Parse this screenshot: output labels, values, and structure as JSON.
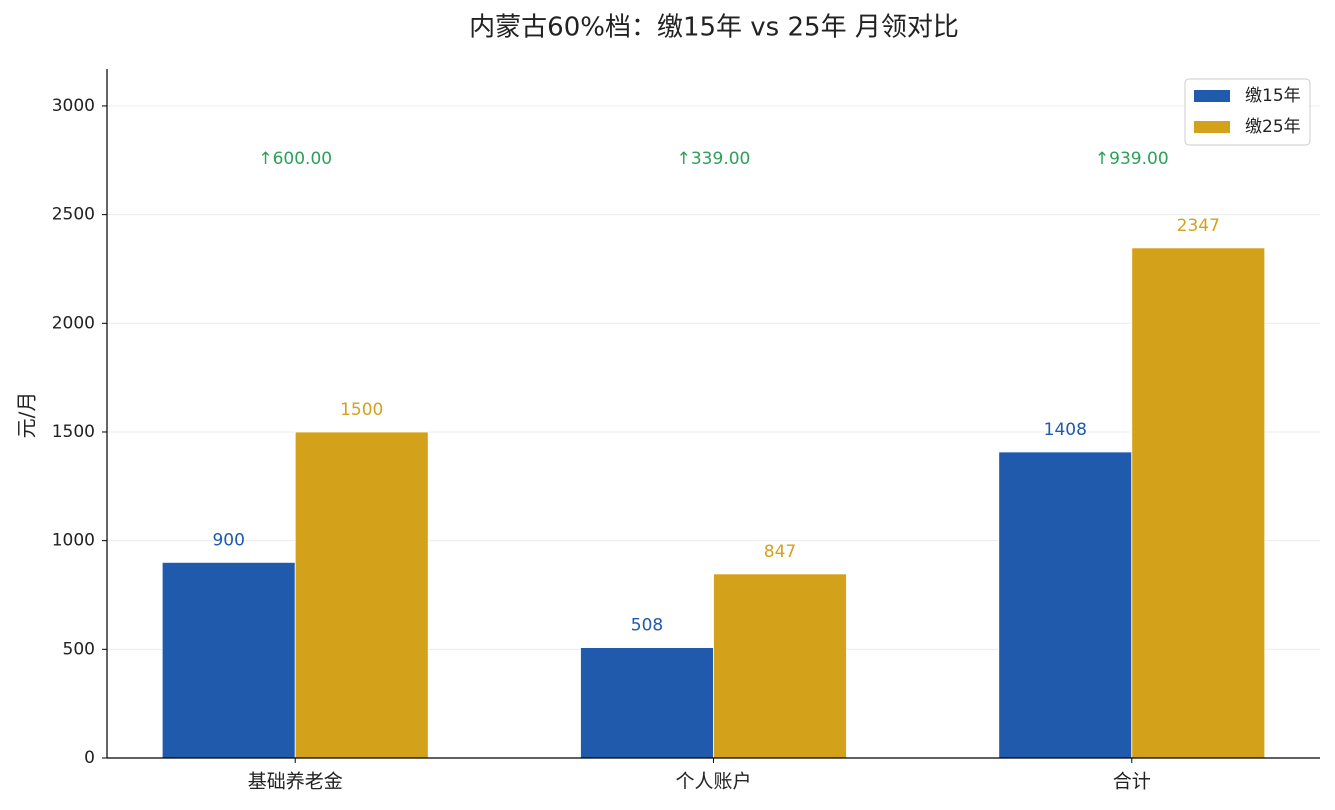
{
  "chart_data": {
    "type": "bar",
    "title": "内蒙古60%档：缴15年 vs 25年 月领对比",
    "y_label": "元/月",
    "categories": [
      "基础养老金",
      "个人账户",
      "合计"
    ],
    "series": [
      {
        "name": "缴15年",
        "color": "#1f5aad",
        "values": [
          900,
          508,
          1408
        ]
      },
      {
        "name": "缴25年",
        "color": "#d4a21a",
        "values": [
          1500,
          847,
          2347
        ]
      }
    ],
    "annotations": [
      "↑600.00",
      "↑339.00",
      "↑939.00"
    ],
    "annotation_color": "#2ca05a",
    "ylim": [
      0,
      3170
    ],
    "yticks": [
      0,
      500,
      1000,
      1500,
      2000,
      2500,
      3000
    ],
    "grid": true,
    "legend": "upper right"
  }
}
